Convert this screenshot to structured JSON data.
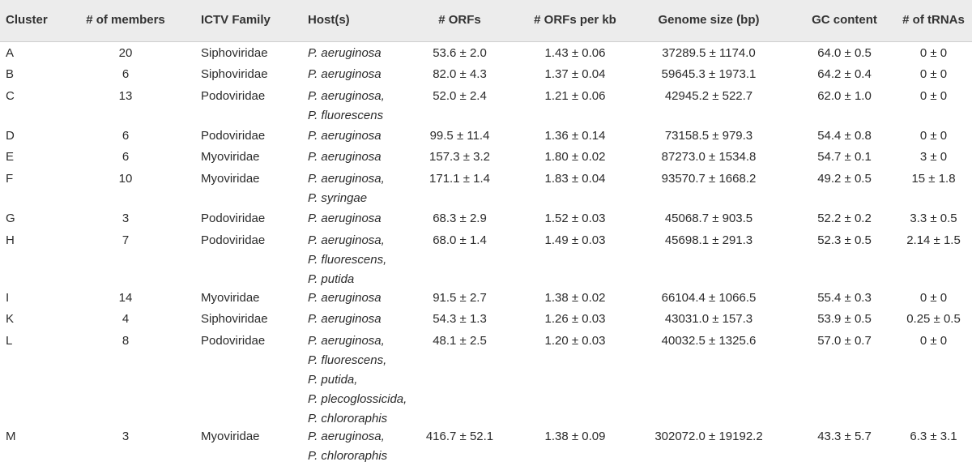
{
  "table": {
    "headers": [
      "Cluster",
      "# of members",
      "ICTV Family",
      "Host(s)",
      "# ORFs",
      "# ORFs per kb",
      "Genome size (bp)",
      "GC content",
      "# of tRNAs"
    ],
    "rows": [
      {
        "cluster": "A",
        "members": "20",
        "family": "Siphoviridae",
        "hosts": [
          "P. aeruginosa"
        ],
        "orfs": "53.6 ± 2.0",
        "orfs_per_kb": "1.43 ± 0.06",
        "genome_size": "37289.5 ± 1174.0",
        "gc": "64.0 ± 0.5",
        "trnas": "0 ± 0"
      },
      {
        "cluster": "B",
        "members": "6",
        "family": "Siphoviridae",
        "hosts": [
          "P. aeruginosa"
        ],
        "orfs": "82.0 ± 4.3",
        "orfs_per_kb": "1.37 ± 0.04",
        "genome_size": "59645.3 ± 1973.1",
        "gc": "64.2 ± 0.4",
        "trnas": "0 ± 0"
      },
      {
        "cluster": "C",
        "members": "13",
        "family": "Podoviridae",
        "hosts": [
          "P. aeruginosa,",
          "P. fluorescens"
        ],
        "orfs": "52.0 ± 2.4",
        "orfs_per_kb": "1.21 ± 0.06",
        "genome_size": "42945.2 ± 522.7",
        "gc": "62.0 ± 1.0",
        "trnas": "0 ± 0"
      },
      {
        "cluster": "D",
        "members": "6",
        "family": "Podoviridae",
        "hosts": [
          "P. aeruginosa"
        ],
        "orfs": "99.5 ± 11.4",
        "orfs_per_kb": "1.36 ± 0.14",
        "genome_size": "73158.5 ± 979.3",
        "gc": "54.4 ± 0.8",
        "trnas": "0 ± 0"
      },
      {
        "cluster": "E",
        "members": "6",
        "family": "Myoviridae",
        "hosts": [
          "P. aeruginosa"
        ],
        "orfs": "157.3 ± 3.2",
        "orfs_per_kb": "1.80 ± 0.02",
        "genome_size": "87273.0 ± 1534.8",
        "gc": "54.7 ± 0.1",
        "trnas": "3 ± 0"
      },
      {
        "cluster": "F",
        "members": "10",
        "family": "Myoviridae",
        "hosts": [
          "P. aeruginosa,",
          "P. syringae"
        ],
        "orfs": "171.1 ± 1.4",
        "orfs_per_kb": "1.83 ± 0.04",
        "genome_size": "93570.7 ± 1668.2",
        "gc": "49.2 ± 0.5",
        "trnas": "15 ± 1.8"
      },
      {
        "cluster": "G",
        "members": "3",
        "family": "Podoviridae",
        "hosts": [
          "P. aeruginosa"
        ],
        "orfs": "68.3 ± 2.9",
        "orfs_per_kb": "1.52 ± 0.03",
        "genome_size": "45068.7 ± 903.5",
        "gc": "52.2 ± 0.2",
        "trnas": "3.3 ± 0.5"
      },
      {
        "cluster": "H",
        "members": "7",
        "family": "Podoviridae",
        "hosts": [
          "P. aeruginosa,",
          "P. fluorescens,",
          "P. putida"
        ],
        "orfs": "68.0 ± 1.4",
        "orfs_per_kb": "1.49 ± 0.03",
        "genome_size": "45698.1 ± 291.3",
        "gc": "52.3 ± 0.5",
        "trnas": "2.14 ± 1.5"
      },
      {
        "cluster": "I",
        "members": "14",
        "family": "Myoviridae",
        "hosts": [
          "P. aeruginosa"
        ],
        "orfs": "91.5 ± 2.7",
        "orfs_per_kb": "1.38 ± 0.02",
        "genome_size": "66104.4 ± 1066.5",
        "gc": "55.4 ± 0.3",
        "trnas": "0 ± 0"
      },
      {
        "cluster": "K",
        "members": "4",
        "family": "Siphoviridae",
        "hosts": [
          "P. aeruginosa"
        ],
        "orfs": "54.3 ± 1.3",
        "orfs_per_kb": "1.26 ± 0.03",
        "genome_size": "43031.0 ± 157.3",
        "gc": "53.9 ± 0.5",
        "trnas": "0.25 ± 0.5"
      },
      {
        "cluster": "L",
        "members": "8",
        "family": "Podoviridae",
        "hosts": [
          "P. aeruginosa,",
          "P. fluorescens,",
          "P. putida,",
          "P. plecoglossicida,",
          "P. chlororaphis"
        ],
        "orfs": "48.1 ± 2.5",
        "orfs_per_kb": "1.20 ± 0.03",
        "genome_size": "40032.5 ± 1325.6",
        "gc": "57.0 ± 0.7",
        "trnas": "0 ± 0"
      },
      {
        "cluster": "M",
        "members": "3",
        "family": "Myoviridae",
        "hosts": [
          "P. aeruginosa,",
          "P. chlororaphis"
        ],
        "orfs": "416.7 ± 52.1",
        "orfs_per_kb": "1.38 ± 0.09",
        "genome_size": "302072.0 ± 19192.2",
        "gc": "43.3 ± 5.7",
        "trnas": "6.3 ± 3.1"
      }
    ]
  }
}
